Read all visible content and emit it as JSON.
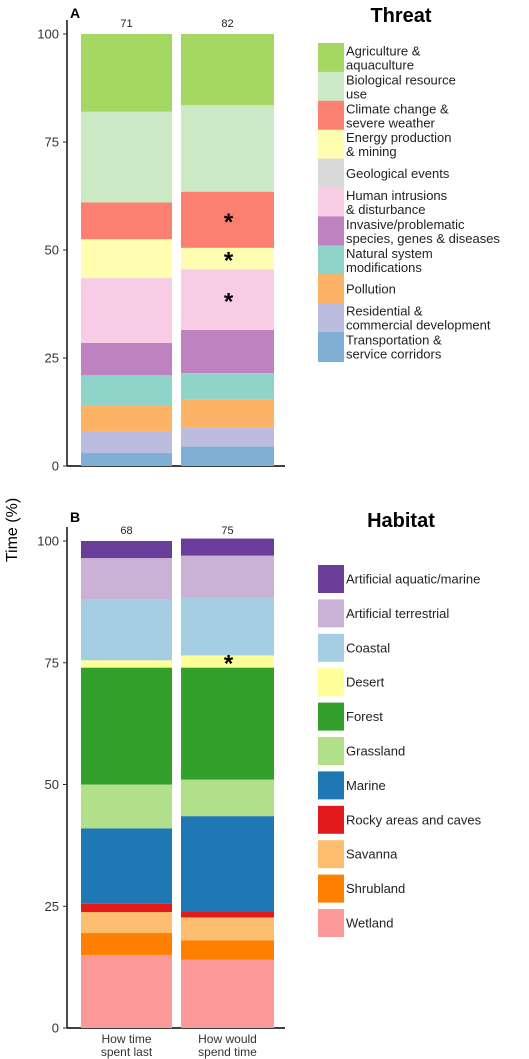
{
  "figure": {
    "ylabel": "Time (%)",
    "x_categories": [
      "How time spent last year",
      "How would spend time next year"
    ],
    "x_category_lines": [
      [
        "How time",
        "spent last",
        "year"
      ],
      [
        "How would",
        "spend time",
        "next year"
      ]
    ]
  },
  "chart_data": [
    {
      "type": "bar",
      "stacked": true,
      "panel_label": "A",
      "title": "Threat",
      "ylabel": "Time (%)",
      "ylim": [
        0,
        100
      ],
      "yticks": [
        0,
        25,
        50,
        75,
        100
      ],
      "categories": [
        "How time spent last year",
        "How would spend time next year"
      ],
      "counts": [
        "71",
        "82"
      ],
      "asterisk_series": [
        "Climate change & severe weather",
        "Energy production & mining",
        "Human intrusions & disturbance"
      ],
      "asterisk_bar": 1,
      "legend_position": "right",
      "series": [
        {
          "name": "Transportation & service corridors",
          "color": "#7fafd5",
          "values": [
            3,
            4.5
          ]
        },
        {
          "name": "Residential & commercial development",
          "color": "#bcbcde",
          "values": [
            5,
            4.5
          ]
        },
        {
          "name": "Pollution",
          "color": "#fdb366",
          "values": [
            6,
            6.3
          ]
        },
        {
          "name": "Natural system modifications",
          "color": "#8fd4c8",
          "values": [
            7,
            6.2
          ]
        },
        {
          "name": "Invasive/problematic species, genes & diseases",
          "color": "#bd82bf",
          "values": [
            7.5,
            10
          ]
        },
        {
          "name": "Human intrusions & disturbance",
          "color": "#f8cce4",
          "values": [
            15,
            14
          ]
        },
        {
          "name": "Geological events",
          "color": "#d9d9d9",
          "values": [
            0,
            0
          ]
        },
        {
          "name": "Energy production & mining",
          "color": "#fefdb0",
          "values": [
            9,
            5
          ]
        },
        {
          "name": "Climate change & severe weather",
          "color": "#fb8072",
          "values": [
            8.5,
            13
          ]
        },
        {
          "name": "Biological resource use",
          "color": "#cce9c6",
          "values": [
            21,
            20
          ]
        },
        {
          "name": "Agriculture & aquaculture",
          "color": "#a5d863",
          "values": [
            18,
            16.5
          ]
        }
      ],
      "legend_order": [
        {
          "name": "Agriculture & aquaculture",
          "lines": [
            "Agriculture &",
            "aquaculture"
          ],
          "color": "#a5d863"
        },
        {
          "name": "Biological resource use",
          "lines": [
            "Biological resource",
            "use"
          ],
          "color": "#cce9c6"
        },
        {
          "name": "Climate change & severe weather",
          "lines": [
            "Climate change &",
            "severe weather"
          ],
          "color": "#fb8072"
        },
        {
          "name": "Energy production & mining",
          "lines": [
            "Energy production",
            "& mining"
          ],
          "color": "#fefdb0"
        },
        {
          "name": "Geological events",
          "lines": [
            "Geological events"
          ],
          "color": "#d9d9d9"
        },
        {
          "name": "Human intrusions & disturbance",
          "lines": [
            "Human intrusions",
            "& disturbance"
          ],
          "color": "#f8cce4"
        },
        {
          "name": "Invasive/problematic species, genes & diseases",
          "lines": [
            "Invasive/problematic",
            "species, genes & diseases"
          ],
          "color": "#bd82bf"
        },
        {
          "name": "Natural system modifications",
          "lines": [
            "Natural system",
            "modifications"
          ],
          "color": "#8fd4c8"
        },
        {
          "name": "Pollution",
          "lines": [
            "Pollution"
          ],
          "color": "#fdb366"
        },
        {
          "name": "Residential & commercial development",
          "lines": [
            "Residential &",
            "commercial development"
          ],
          "color": "#bcbcde"
        },
        {
          "name": "Transportation & service corridors",
          "lines": [
            "Transportation &",
            "service corridors"
          ],
          "color": "#7fafd5"
        }
      ]
    },
    {
      "type": "bar",
      "stacked": true,
      "panel_label": "B",
      "title": "Habitat",
      "ylabel": "Time (%)",
      "ylim": [
        0,
        100
      ],
      "yticks": [
        0,
        25,
        50,
        75,
        100
      ],
      "categories": [
        "How time spent last year",
        "How would spend time next year"
      ],
      "counts": [
        "68",
        "75"
      ],
      "asterisk_series": [
        "Desert"
      ],
      "asterisk_bar": 1,
      "legend_position": "right",
      "series": [
        {
          "name": "Wetland",
          "color": "#fb9a99",
          "values": [
            15,
            14
          ]
        },
        {
          "name": "Shrubland",
          "color": "#ff7f00",
          "values": [
            4.5,
            4
          ]
        },
        {
          "name": "Savanna",
          "color": "#fdbf6f",
          "values": [
            4.3,
            4.7
          ]
        },
        {
          "name": "Rocky areas and caves",
          "color": "#e31a1c",
          "values": [
            1.7,
            1.3
          ]
        },
        {
          "name": "Marine",
          "color": "#1f78b4",
          "values": [
            15.5,
            19.5
          ]
        },
        {
          "name": "Grassland",
          "color": "#b2df8a",
          "values": [
            9,
            7.5
          ]
        },
        {
          "name": "Forest",
          "color": "#33a02c",
          "values": [
            24,
            23
          ]
        },
        {
          "name": "Desert",
          "color": "#ffff99",
          "values": [
            1.5,
            2.5
          ]
        },
        {
          "name": "Coastal",
          "color": "#a6cee3",
          "values": [
            12.5,
            12
          ]
        },
        {
          "name": "Artificial terrestrial",
          "color": "#cab2d6",
          "values": [
            8.5,
            8.5
          ]
        },
        {
          "name": "Artificial aquatic/marine",
          "color": "#6a3d9a",
          "values": [
            3.5,
            3.5
          ]
        }
      ],
      "legend_order": [
        {
          "name": "Artificial aquatic/marine",
          "lines": [
            "Artificial aquatic/marine"
          ],
          "color": "#6a3d9a"
        },
        {
          "name": "Artificial terrestrial",
          "lines": [
            "Artificial terrestrial"
          ],
          "color": "#cab2d6"
        },
        {
          "name": "Coastal",
          "lines": [
            "Coastal"
          ],
          "color": "#a6cee3"
        },
        {
          "name": "Desert",
          "lines": [
            "Desert"
          ],
          "color": "#ffff99"
        },
        {
          "name": "Forest",
          "lines": [
            "Forest"
          ],
          "color": "#33a02c"
        },
        {
          "name": "Grassland",
          "lines": [
            "Grassland"
          ],
          "color": "#b2df8a"
        },
        {
          "name": "Marine",
          "lines": [
            "Marine"
          ],
          "color": "#1f78b4"
        },
        {
          "name": "Rocky areas and caves",
          "lines": [
            "Rocky areas and caves"
          ],
          "color": "#e31a1c"
        },
        {
          "name": "Savanna",
          "lines": [
            "Savanna"
          ],
          "color": "#fdbf6f"
        },
        {
          "name": "Shrubland",
          "lines": [
            "Shrubland"
          ],
          "color": "#ff7f00"
        },
        {
          "name": "Wetland",
          "lines": [
            "Wetland"
          ],
          "color": "#fb9a99"
        }
      ]
    }
  ]
}
